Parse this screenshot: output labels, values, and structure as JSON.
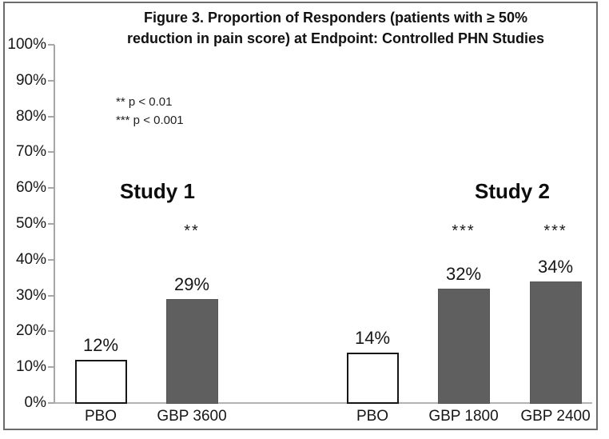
{
  "figure": {
    "title_line1": "Figure 3. Proportion of Responders (patients with ≥ 50%",
    "title_line2": "reduction in pain score) at Endpoint: Controlled PHN Studies",
    "notes": [
      "** p < 0.01",
      "*** p < 0.001"
    ]
  },
  "chart_data": {
    "type": "bar",
    "title": "Figure 3. Proportion of Responders (patients with ≥ 50% reduction in pain score) at Endpoint: Controlled PHN Studies",
    "xlabel": "",
    "ylabel": "",
    "ylim": [
      0,
      100
    ],
    "yticks": [
      0,
      10,
      20,
      30,
      40,
      50,
      60,
      70,
      80,
      90,
      100
    ],
    "ytick_labels": [
      "0%",
      "10%",
      "20%",
      "30%",
      "40%",
      "50%",
      "60%",
      "70%",
      "80%",
      "90%",
      "100%"
    ],
    "grid": false,
    "legend": false,
    "annotations": [
      "** p < 0.01",
      "*** p < 0.001"
    ],
    "groups": [
      {
        "name": "Study 1",
        "bars": [
          {
            "label": "PBO",
            "value": 12,
            "value_label": "12%",
            "fill": "white",
            "significance": ""
          },
          {
            "label": "GBP 3600",
            "value": 29,
            "value_label": "29%",
            "fill": "dark",
            "significance": "**"
          }
        ]
      },
      {
        "name": "Study 2",
        "bars": [
          {
            "label": "PBO",
            "value": 14,
            "value_label": "14%",
            "fill": "white",
            "significance": ""
          },
          {
            "label": "GBP 1800",
            "value": 32,
            "value_label": "32%",
            "fill": "dark",
            "significance": "***"
          },
          {
            "label": "GBP 2400",
            "value": 34,
            "value_label": "34%",
            "fill": "dark",
            "significance": "***"
          }
        ]
      }
    ],
    "colors": {
      "dark_bar": "#5f5f5f",
      "white_bar": "#ffffff",
      "bar_outline": "#161616",
      "axis_line": "#a6a6a6",
      "frame_border": "#6b6b6b",
      "text": "#1a1a1a"
    }
  }
}
